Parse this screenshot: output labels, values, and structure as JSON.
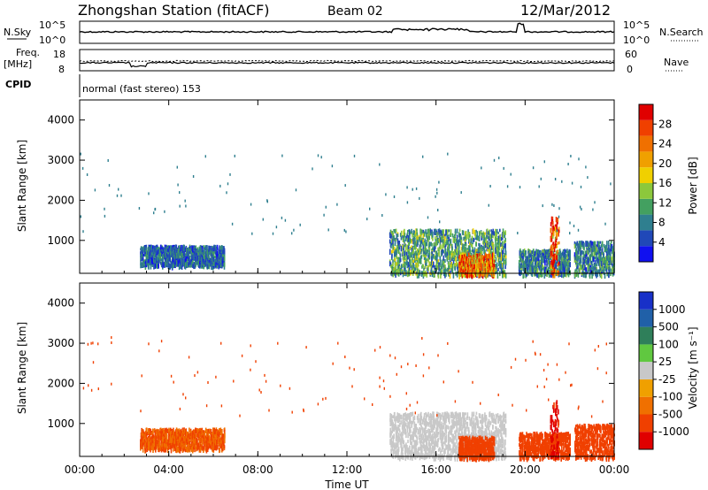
{
  "header": {
    "station": "Zhongshan Station (fitACF)",
    "beam": "Beam 02",
    "date": "12/Mar/2012"
  },
  "housekeeping": {
    "nsky_label": "N.Sky",
    "nsearch_label": "N.Search",
    "nsky_ticks": [
      "10^5",
      "10^0"
    ],
    "nsearch_ticks": [
      "10^5",
      "10^0"
    ],
    "freq_label_1": "Freq.",
    "freq_label_2": "[MHz]",
    "freq_ticks": [
      "18",
      "8"
    ],
    "nave_label": "Nave",
    "nave_ticks": [
      "60",
      "0"
    ],
    "cpid_label": "CPID",
    "cpid_text": "normal (fast stereo) 153"
  },
  "colors": {
    "power_scale": [
      "#1010f0",
      "#2048b8",
      "#2f7f8f",
      "#43a060",
      "#8cc83c",
      "#f0d000",
      "#f0a000",
      "#f07000",
      "#f04000",
      "#e00000"
    ],
    "velocity_scale": [
      "#e00000",
      "#f04000",
      "#f07000",
      "#f0a000",
      "#c8c8c8",
      "#60c840",
      "#2f7f5a",
      "#2060a8",
      "#1830c8"
    ]
  },
  "chart_data": [
    {
      "type": "heatmap",
      "name": "power",
      "ylabel": "Slant Range [km]",
      "xlabel": "",
      "x_range_hours": [
        0,
        24
      ],
      "y_range_km": [
        180,
        4500
      ],
      "y_ticks": [
        "1000",
        "2000",
        "3000",
        "4000"
      ],
      "colorbar": {
        "label": "Power [dB]",
        "range": [
          0,
          30
        ],
        "ticks": [
          "4",
          "8",
          "12",
          "16",
          "20",
          "24",
          "28"
        ]
      },
      "regions": [
        {
          "t": [
            2.7,
            6.5
          ],
          "r": [
            400,
            900
          ],
          "v": 6
        },
        {
          "t": [
            13.9,
            19.1
          ],
          "r": [
            180,
            1300
          ],
          "v": 10
        },
        {
          "t": [
            17.0,
            18.6
          ],
          "r": [
            180,
            700
          ],
          "v": 22
        },
        {
          "t": [
            19.7,
            22.0
          ],
          "r": [
            180,
            800
          ],
          "v": 8
        },
        {
          "t": [
            21.1,
            21.5
          ],
          "r": [
            180,
            1600
          ],
          "v": 24
        },
        {
          "t": [
            22.2,
            24.0
          ],
          "r": [
            180,
            1000
          ],
          "v": 8
        }
      ]
    },
    {
      "type": "heatmap",
      "name": "velocity",
      "ylabel": "Slant Range [km]",
      "xlabel": "Time UT",
      "x_range_hours": [
        0,
        24
      ],
      "x_ticks": [
        "00:00",
        "04:00",
        "08:00",
        "12:00",
        "16:00",
        "20:00",
        "00:00"
      ],
      "y_range_km": [
        180,
        4500
      ],
      "y_ticks": [
        "1000",
        "2000",
        "3000",
        "4000"
      ],
      "colorbar": {
        "label": "Velocity [m s⁻¹]",
        "ticks": [
          "1000",
          "500",
          "100",
          "25",
          "-25",
          "-100",
          "-500",
          "-1000"
        ]
      },
      "regions": [
        {
          "t": [
            2.7,
            6.5
          ],
          "r": [
            400,
            900
          ],
          "v": -100
        },
        {
          "t": [
            13.9,
            19.1
          ],
          "r": [
            180,
            1300
          ],
          "v": 0
        },
        {
          "t": [
            17.0,
            18.6
          ],
          "r": [
            180,
            700
          ],
          "v": -150
        },
        {
          "t": [
            19.7,
            22.0
          ],
          "r": [
            180,
            800
          ],
          "v": -200
        },
        {
          "t": [
            21.1,
            21.5
          ],
          "r": [
            180,
            1600
          ],
          "v": -600
        },
        {
          "t": [
            22.2,
            24.0
          ],
          "r": [
            180,
            1000
          ],
          "v": -200
        }
      ]
    }
  ]
}
